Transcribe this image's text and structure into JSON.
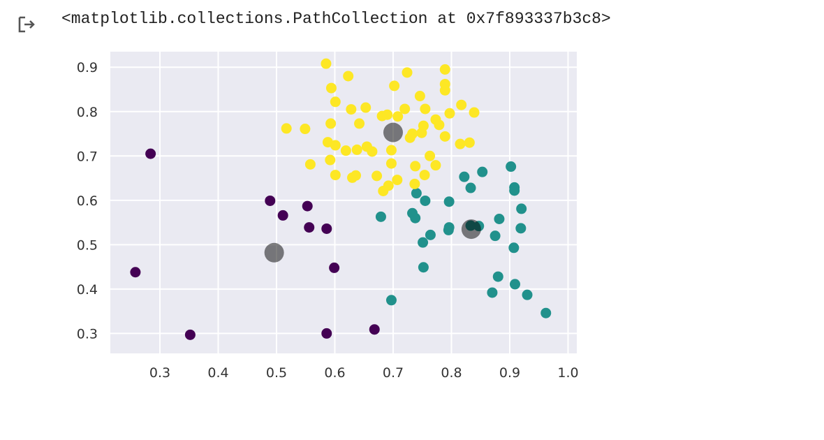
{
  "output": {
    "text": "<matplotlib.collections.PathCollection at 0x7f893337b3c8>",
    "icon": "output-arrow-icon"
  },
  "chart_data": {
    "type": "scatter",
    "title": "",
    "xlabel": "",
    "ylabel": "",
    "xlim": [
      0.215,
      1.015
    ],
    "ylim": [
      0.255,
      0.935
    ],
    "xticks": [
      0.3,
      0.4,
      0.5,
      0.6,
      0.7,
      0.8,
      0.9,
      1.0
    ],
    "xtick_labels": [
      "0.3",
      "0.4",
      "0.5",
      "0.6",
      "0.7",
      "0.8",
      "0.9",
      "1.0"
    ],
    "yticks": [
      0.3,
      0.4,
      0.5,
      0.6,
      0.7,
      0.8,
      0.9
    ],
    "ytick_labels": [
      "0.3",
      "0.4",
      "0.5",
      "0.6",
      "0.7",
      "0.8",
      "0.9"
    ],
    "grid": true,
    "background": "#eaeaf2",
    "series": [
      {
        "color": "#440154",
        "points": [
          [
            0.284,
            0.705
          ],
          [
            0.258,
            0.438
          ],
          [
            0.352,
            0.297
          ],
          [
            0.489,
            0.599
          ],
          [
            0.511,
            0.566
          ],
          [
            0.553,
            0.587
          ],
          [
            0.556,
            0.539
          ],
          [
            0.586,
            0.536
          ],
          [
            0.599,
            0.448
          ],
          [
            0.586,
            0.3
          ],
          [
            0.668,
            0.309
          ]
        ]
      },
      {
        "color": "#21918c",
        "points": [
          [
            0.74,
            0.616
          ],
          [
            0.755,
            0.599
          ],
          [
            0.733,
            0.571
          ],
          [
            0.738,
            0.56
          ],
          [
            0.679,
            0.563
          ],
          [
            0.796,
            0.597
          ],
          [
            0.822,
            0.653
          ],
          [
            0.833,
            0.628
          ],
          [
            0.853,
            0.664
          ],
          [
            0.902,
            0.676
          ],
          [
            0.908,
            0.629
          ],
          [
            0.908,
            0.622
          ],
          [
            0.92,
            0.581
          ],
          [
            0.882,
            0.558
          ],
          [
            0.796,
            0.539
          ],
          [
            0.795,
            0.533
          ],
          [
            0.764,
            0.522
          ],
          [
            0.751,
            0.505
          ],
          [
            0.833,
            0.543
          ],
          [
            0.847,
            0.542
          ],
          [
            0.875,
            0.52
          ],
          [
            0.919,
            0.537
          ],
          [
            0.907,
            0.493
          ],
          [
            0.752,
            0.449
          ],
          [
            0.697,
            0.375
          ],
          [
            0.88,
            0.428
          ],
          [
            0.87,
            0.392
          ],
          [
            0.909,
            0.411
          ],
          [
            0.93,
            0.387
          ],
          [
            0.962,
            0.346
          ]
        ]
      },
      {
        "color": "#fde725",
        "points": [
          [
            0.585,
            0.908
          ],
          [
            0.623,
            0.88
          ],
          [
            0.594,
            0.853
          ],
          [
            0.601,
            0.822
          ],
          [
            0.724,
            0.888
          ],
          [
            0.789,
            0.895
          ],
          [
            0.702,
            0.858
          ],
          [
            0.746,
            0.835
          ],
          [
            0.789,
            0.862
          ],
          [
            0.789,
            0.848
          ],
          [
            0.817,
            0.815
          ],
          [
            0.628,
            0.805
          ],
          [
            0.653,
            0.809
          ],
          [
            0.72,
            0.806
          ],
          [
            0.755,
            0.806
          ],
          [
            0.839,
            0.798
          ],
          [
            0.797,
            0.796
          ],
          [
            0.681,
            0.79
          ],
          [
            0.69,
            0.793
          ],
          [
            0.708,
            0.789
          ],
          [
            0.773,
            0.782
          ],
          [
            0.779,
            0.77
          ],
          [
            0.593,
            0.773
          ],
          [
            0.642,
            0.773
          ],
          [
            0.752,
            0.768
          ],
          [
            0.749,
            0.752
          ],
          [
            0.733,
            0.75
          ],
          [
            0.729,
            0.741
          ],
          [
            0.517,
            0.762
          ],
          [
            0.549,
            0.761
          ],
          [
            0.789,
            0.744
          ],
          [
            0.815,
            0.727
          ],
          [
            0.831,
            0.73
          ],
          [
            0.588,
            0.731
          ],
          [
            0.601,
            0.724
          ],
          [
            0.619,
            0.712
          ],
          [
            0.638,
            0.714
          ],
          [
            0.655,
            0.721
          ],
          [
            0.664,
            0.71
          ],
          [
            0.697,
            0.713
          ],
          [
            0.558,
            0.681
          ],
          [
            0.592,
            0.691
          ],
          [
            0.697,
            0.683
          ],
          [
            0.738,
            0.677
          ],
          [
            0.763,
            0.7
          ],
          [
            0.773,
            0.679
          ],
          [
            0.601,
            0.657
          ],
          [
            0.63,
            0.651
          ],
          [
            0.636,
            0.656
          ],
          [
            0.672,
            0.655
          ],
          [
            0.707,
            0.646
          ],
          [
            0.754,
            0.657
          ],
          [
            0.692,
            0.633
          ],
          [
            0.737,
            0.637
          ],
          [
            0.683,
            0.621
          ]
        ]
      }
    ],
    "centers": {
      "color": "#000000",
      "opacity": 0.5,
      "points": [
        [
          0.7,
          0.753
        ],
        [
          0.496,
          0.482
        ],
        [
          0.834,
          0.535
        ]
      ]
    }
  }
}
